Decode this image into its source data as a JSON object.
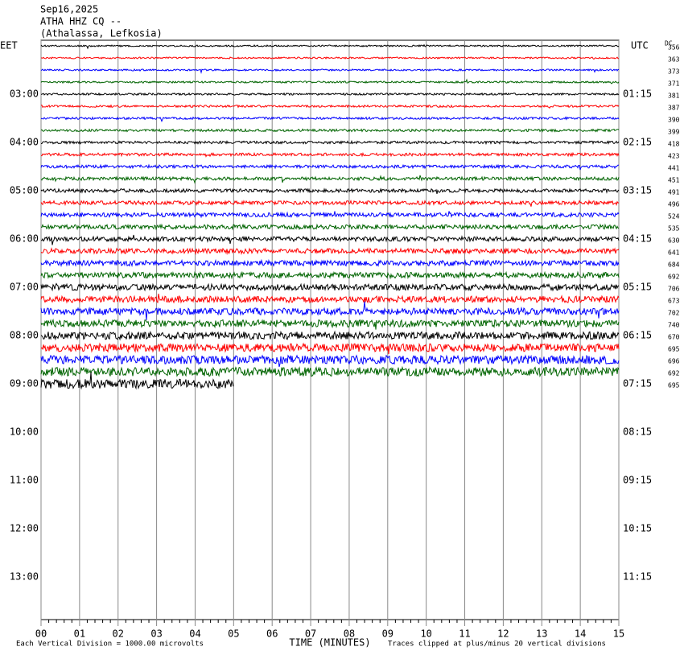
{
  "header": {
    "date": "Sep16,2025",
    "station": "ATHA HHZ CQ --",
    "location": "(Athalassa, Lefkosia)"
  },
  "left_axis": {
    "title": "EET",
    "labels": [
      "03:00",
      "04:00",
      "05:00",
      "06:00",
      "07:00",
      "08:00",
      "09:00",
      "10:00",
      "11:00",
      "12:00",
      "13:00"
    ]
  },
  "right_axis": {
    "title": "UTC",
    "labels": [
      "01:15",
      "02:15",
      "03:15",
      "04:15",
      "05:15",
      "06:15",
      "07:15",
      "08:15",
      "09:15",
      "10:15",
      "11:15"
    ]
  },
  "dc_title": "DC",
  "dc_offsets": [
    356,
    363,
    373,
    371,
    381,
    387,
    390,
    399,
    418,
    423,
    441,
    451,
    491,
    496,
    524,
    535,
    630,
    641,
    684,
    692,
    706,
    673,
    702,
    740,
    670,
    695,
    696,
    692,
    695
  ],
  "trace_colors": [
    "#000000",
    "#ff0000",
    "#0000ff",
    "#006400"
  ],
  "last_row_minutes": 5,
  "xlim": [
    0,
    15
  ],
  "xticks": [
    {
      "value": 0,
      "label": "00"
    },
    {
      "value": 1,
      "label": "01"
    },
    {
      "value": 2,
      "label": "02"
    },
    {
      "value": 3,
      "label": "03"
    },
    {
      "value": 4,
      "label": "04"
    },
    {
      "value": 5,
      "label": "05"
    },
    {
      "value": 6,
      "label": "06"
    },
    {
      "value": 7,
      "label": "07"
    },
    {
      "value": 8,
      "label": "08"
    },
    {
      "value": 9,
      "label": "09"
    },
    10,
    11,
    12,
    13,
    14,
    15
  ],
  "xlabel": "TIME (MINUTES)",
  "footer": {
    "scale": "Each Vertical Division = 1000.00 microvolts",
    "clip": "Traces clipped at plus/minus 20 vertical divisions"
  }
}
